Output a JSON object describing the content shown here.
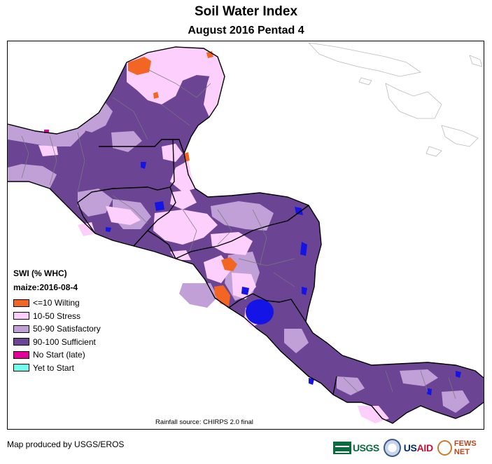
{
  "title": "Soil Water Index",
  "subtitle": "August 2016 Pentad 4",
  "legend": {
    "title": "SWI (% WHC)",
    "subtitle": "maize:2016-08-4",
    "items": [
      {
        "label": "<=10 Wilting",
        "color": "#f26522"
      },
      {
        "label": "10-50 Stress",
        "color": "#fccffc"
      },
      {
        "label": "50-90 Satisfactory",
        "color": "#c0a0d6"
      },
      {
        "label": "90-100 Sufficient",
        "color": "#6b4593"
      },
      {
        "label": "No Start (late)",
        "color": "#e6009a"
      },
      {
        "label": "Yet to Start",
        "color": "#70ffee"
      }
    ]
  },
  "source": "Rainfall source: CHIRPS 2.0 final",
  "credit": "Map produced by USGS/EROS",
  "logos": {
    "usgs": "USGS",
    "usaid_a": "US",
    "usaid_b": "AID",
    "fews": "FEWS NET"
  },
  "colors": {
    "wilting": "#f26522",
    "stress": "#fccffc",
    "satisfactory": "#c0a0d6",
    "sufficient": "#6b4593",
    "nostart": "#e6009a",
    "water": "#1414e6",
    "border": "#000000"
  }
}
